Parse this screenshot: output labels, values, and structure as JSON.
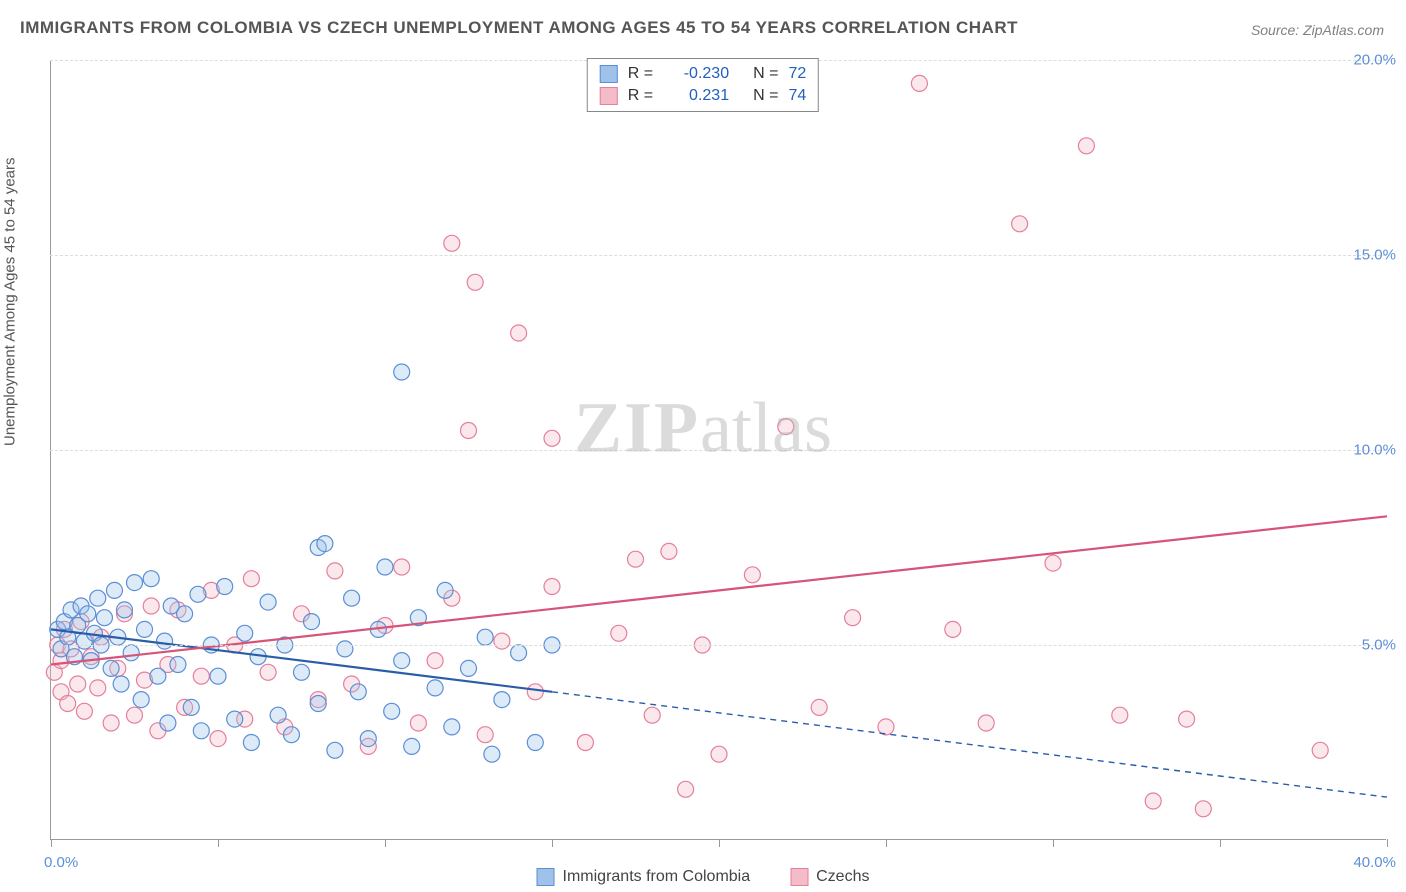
{
  "title": "IMMIGRANTS FROM COLOMBIA VS CZECH UNEMPLOYMENT AMONG AGES 45 TO 54 YEARS CORRELATION CHART",
  "source": "Source: ZipAtlas.com",
  "ylabel": "Unemployment Among Ages 45 to 54 years",
  "watermark_zip": "ZIP",
  "watermark_atlas": "atlas",
  "chart": {
    "type": "scatter",
    "background_color": "#ffffff",
    "grid_color": "#dddddd",
    "axis_color": "#999999",
    "tick_label_color": "#5b8fd6",
    "title_fontsize": 17,
    "label_fontsize": 15,
    "xlim": [
      0,
      40
    ],
    "ylim": [
      0,
      20
    ],
    "ytick_step": 5,
    "yticks": [
      5.0,
      10.0,
      15.0,
      20.0
    ],
    "ytick_labels": [
      "5.0%",
      "10.0%",
      "15.0%",
      "20.0%"
    ],
    "xtick_positions": [
      0,
      5,
      10,
      15,
      20,
      25,
      30,
      35,
      40
    ],
    "x_axis_label_min": "0.0%",
    "x_axis_label_max": "40.0%",
    "marker_radius": 8,
    "marker_fill_opacity": 0.35,
    "marker_stroke_width": 1.2,
    "line_width": 2.2,
    "dash_pattern": "6,5",
    "series": [
      {
        "name": "Immigrants from Colombia",
        "color_fill": "#9fc2ea",
        "color_stroke": "#5b8fd6",
        "line_color": "#2a5da8",
        "R": "-0.230",
        "N": "72",
        "trend_solid_x": [
          0,
          15
        ],
        "trend_solid_y": [
          5.4,
          3.8
        ],
        "trend_dash_x": [
          15,
          40
        ],
        "trend_dash_y": [
          3.8,
          1.1
        ],
        "points": [
          [
            0.2,
            5.4
          ],
          [
            0.3,
            4.9
          ],
          [
            0.4,
            5.6
          ],
          [
            0.5,
            5.2
          ],
          [
            0.6,
            5.9
          ],
          [
            0.7,
            4.7
          ],
          [
            0.8,
            5.5
          ],
          [
            0.9,
            6.0
          ],
          [
            1.0,
            5.1
          ],
          [
            1.1,
            5.8
          ],
          [
            1.2,
            4.6
          ],
          [
            1.3,
            5.3
          ],
          [
            1.4,
            6.2
          ],
          [
            1.5,
            5.0
          ],
          [
            1.6,
            5.7
          ],
          [
            1.8,
            4.4
          ],
          [
            1.9,
            6.4
          ],
          [
            2.0,
            5.2
          ],
          [
            2.1,
            4.0
          ],
          [
            2.2,
            5.9
          ],
          [
            2.4,
            4.8
          ],
          [
            2.5,
            6.6
          ],
          [
            2.7,
            3.6
          ],
          [
            2.8,
            5.4
          ],
          [
            3.0,
            6.7
          ],
          [
            3.2,
            4.2
          ],
          [
            3.4,
            5.1
          ],
          [
            3.5,
            3.0
          ],
          [
            3.6,
            6.0
          ],
          [
            3.8,
            4.5
          ],
          [
            4.0,
            5.8
          ],
          [
            4.2,
            3.4
          ],
          [
            4.4,
            6.3
          ],
          [
            4.5,
            2.8
          ],
          [
            4.8,
            5.0
          ],
          [
            5.0,
            4.2
          ],
          [
            5.2,
            6.5
          ],
          [
            5.5,
            3.1
          ],
          [
            5.8,
            5.3
          ],
          [
            6.0,
            2.5
          ],
          [
            6.2,
            4.7
          ],
          [
            6.5,
            6.1
          ],
          [
            6.8,
            3.2
          ],
          [
            7.0,
            5.0
          ],
          [
            7.2,
            2.7
          ],
          [
            7.5,
            4.3
          ],
          [
            7.8,
            5.6
          ],
          [
            8.0,
            3.5
          ],
          [
            8.0,
            7.5
          ],
          [
            8.2,
            7.6
          ],
          [
            8.5,
            2.3
          ],
          [
            8.8,
            4.9
          ],
          [
            9.0,
            6.2
          ],
          [
            9.2,
            3.8
          ],
          [
            9.5,
            2.6
          ],
          [
            9.8,
            5.4
          ],
          [
            10.0,
            7.0
          ],
          [
            10.2,
            3.3
          ],
          [
            10.5,
            4.6
          ],
          [
            10.5,
            12.0
          ],
          [
            10.8,
            2.4
          ],
          [
            11.0,
            5.7
          ],
          [
            11.5,
            3.9
          ],
          [
            11.8,
            6.4
          ],
          [
            12.0,
            2.9
          ],
          [
            12.5,
            4.4
          ],
          [
            13.0,
            5.2
          ],
          [
            13.2,
            2.2
          ],
          [
            13.5,
            3.6
          ],
          [
            14.0,
            4.8
          ],
          [
            14.5,
            2.5
          ],
          [
            15.0,
            5.0
          ]
        ]
      },
      {
        "name": "Czechs",
        "color_fill": "#f4bcc9",
        "color_stroke": "#e57f9a",
        "line_color": "#d6547a",
        "R": "0.231",
        "N": "74",
        "trend_solid_x": [
          0,
          40
        ],
        "trend_solid_y": [
          4.5,
          8.3
        ],
        "trend_dash_x": null,
        "trend_dash_y": null,
        "points": [
          [
            0.1,
            4.3
          ],
          [
            0.2,
            5.0
          ],
          [
            0.3,
            3.8
          ],
          [
            0.3,
            4.6
          ],
          [
            0.4,
            5.4
          ],
          [
            0.5,
            3.5
          ],
          [
            0.6,
            4.9
          ],
          [
            0.8,
            4.0
          ],
          [
            0.9,
            5.6
          ],
          [
            1.0,
            3.3
          ],
          [
            1.2,
            4.7
          ],
          [
            1.4,
            3.9
          ],
          [
            1.5,
            5.2
          ],
          [
            1.8,
            3.0
          ],
          [
            2.0,
            4.4
          ],
          [
            2.2,
            5.8
          ],
          [
            2.5,
            3.2
          ],
          [
            2.8,
            4.1
          ],
          [
            3.0,
            6.0
          ],
          [
            3.2,
            2.8
          ],
          [
            3.5,
            4.5
          ],
          [
            3.8,
            5.9
          ],
          [
            4.0,
            3.4
          ],
          [
            4.5,
            4.2
          ],
          [
            4.8,
            6.4
          ],
          [
            5.0,
            2.6
          ],
          [
            5.5,
            5.0
          ],
          [
            5.8,
            3.1
          ],
          [
            6.0,
            6.7
          ],
          [
            6.5,
            4.3
          ],
          [
            7.0,
            2.9
          ],
          [
            7.5,
            5.8
          ],
          [
            8.0,
            3.6
          ],
          [
            8.5,
            6.9
          ],
          [
            9.0,
            4.0
          ],
          [
            9.5,
            2.4
          ],
          [
            10.0,
            5.5
          ],
          [
            10.5,
            7.0
          ],
          [
            11.0,
            3.0
          ],
          [
            11.5,
            4.6
          ],
          [
            12.0,
            15.3
          ],
          [
            12.0,
            6.2
          ],
          [
            12.5,
            10.5
          ],
          [
            12.7,
            14.3
          ],
          [
            13.0,
            2.7
          ],
          [
            13.5,
            5.1
          ],
          [
            14.0,
            13.0
          ],
          [
            14.5,
            3.8
          ],
          [
            15.0,
            6.5
          ],
          [
            15.0,
            10.3
          ],
          [
            16.0,
            2.5
          ],
          [
            17.0,
            5.3
          ],
          [
            17.5,
            7.2
          ],
          [
            18.0,
            3.2
          ],
          [
            18.5,
            7.4
          ],
          [
            19.0,
            1.3
          ],
          [
            19.5,
            5.0
          ],
          [
            20.0,
            2.2
          ],
          [
            21.0,
            6.8
          ],
          [
            22.0,
            10.6
          ],
          [
            23.0,
            3.4
          ],
          [
            24.0,
            5.7
          ],
          [
            25.0,
            2.9
          ],
          [
            26.0,
            19.4
          ],
          [
            27.0,
            5.4
          ],
          [
            28.0,
            3.0
          ],
          [
            29.0,
            15.8
          ],
          [
            30.0,
            7.1
          ],
          [
            31.0,
            17.8
          ],
          [
            32.0,
            3.2
          ],
          [
            33.0,
            1.0
          ],
          [
            34.0,
            3.1
          ],
          [
            34.5,
            0.8
          ],
          [
            38.0,
            2.3
          ]
        ]
      }
    ]
  },
  "legend_bottom": {
    "series1_label": "Immigrants from Colombia",
    "series2_label": "Czechs"
  }
}
